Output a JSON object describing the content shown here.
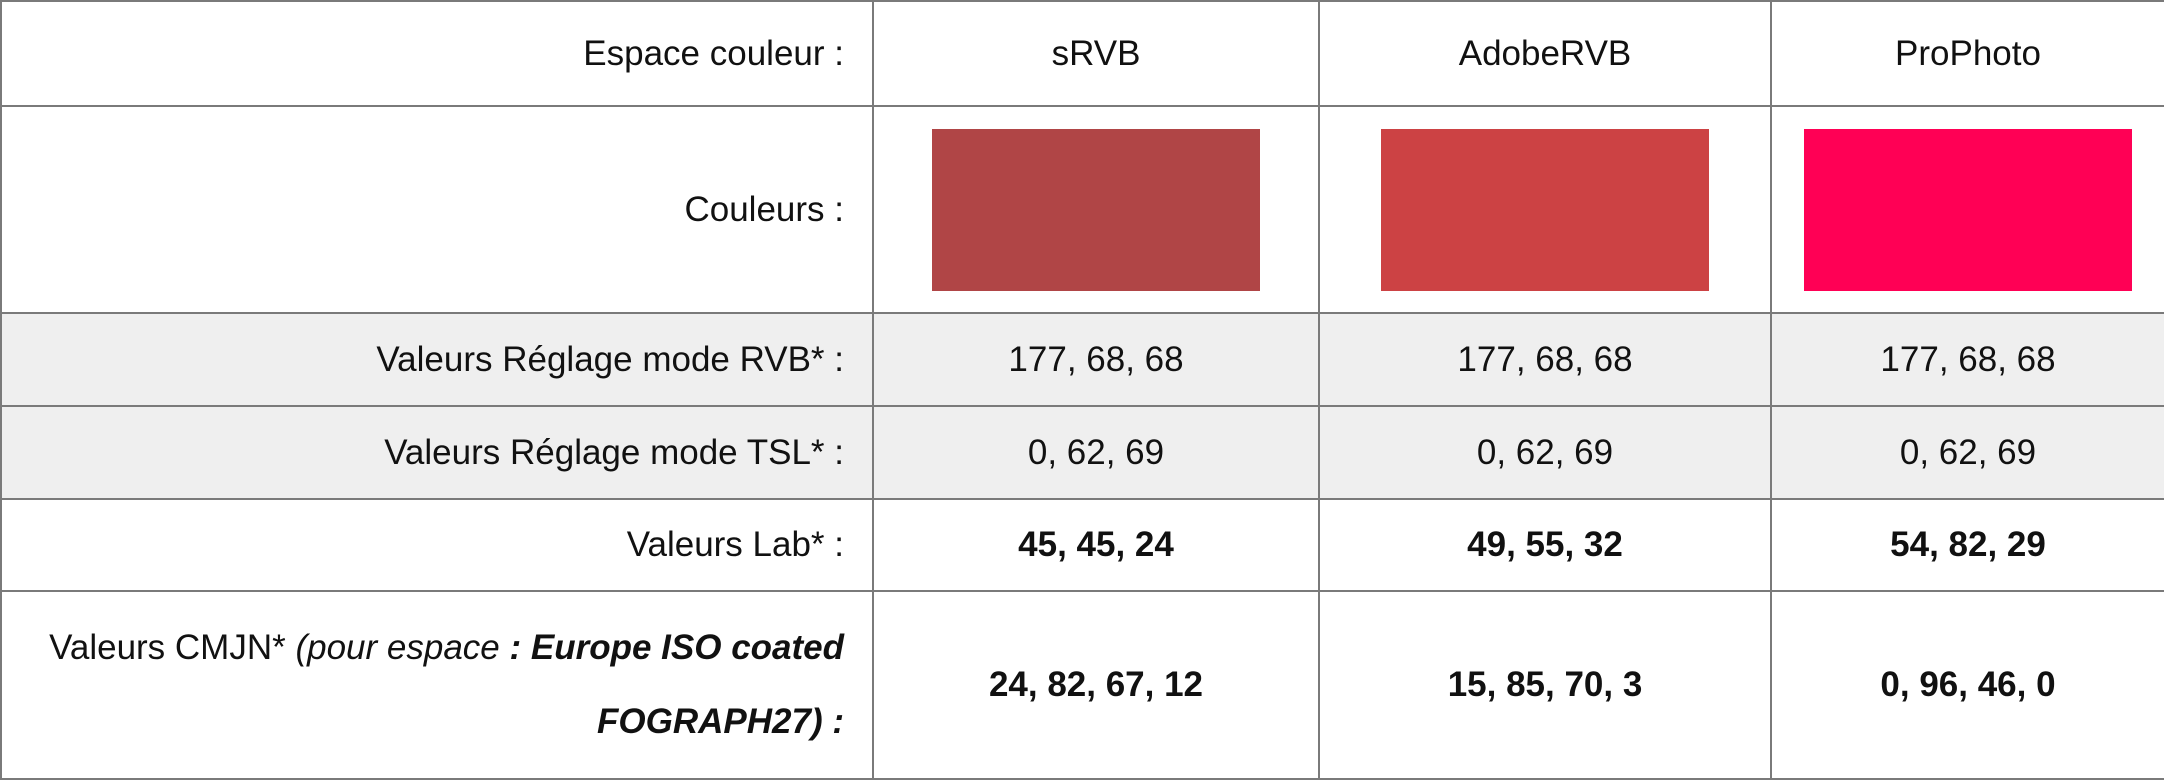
{
  "table": {
    "header": [
      "Espace couleur :",
      "sRVB",
      "AdobeRVB",
      "ProPhoto"
    ],
    "swatch_row": {
      "label": "Couleurs :",
      "colors": [
        "#b04546",
        "#cc4244",
        "#ff0055"
      ]
    },
    "rows": [
      {
        "label": "Valeurs Réglage mode RVB* :",
        "cells": [
          "177, 68, 68",
          "177, 68, 68",
          "177, 68, 68"
        ]
      },
      {
        "label": "Valeurs Réglage mode TSL* :",
        "cells": [
          "0, 62, 69",
          "0, 62, 69",
          "0, 62, 69"
        ]
      },
      {
        "label": "Valeurs Lab* :",
        "cells": [
          "45, 45, 24",
          "49, 55, 32",
          "54, 82, 29"
        ]
      }
    ],
    "cmjn_row": {
      "label_parts": [
        "Valeurs CMJN* ",
        "(pour espace ",
        ": Europe ISO coated FOGRAPH27) :"
      ],
      "cells": [
        "24, 82, 67, 12",
        "15, 85, 70, 3",
        "0, 96, 46, 0"
      ]
    }
  }
}
